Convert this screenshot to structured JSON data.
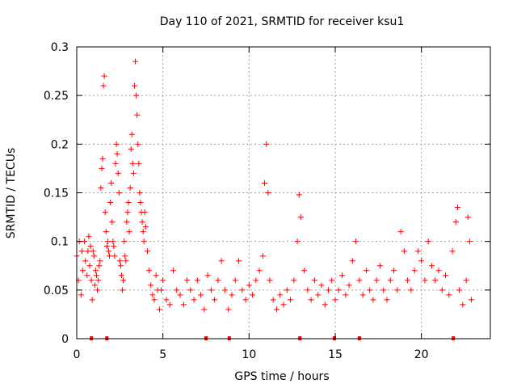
{
  "chart_data": {
    "type": "scatter",
    "title": "Day 110 of 2021, SRMTID for receiver ksu1",
    "xlabel": "GPS time / hours",
    "ylabel": "SRMTID / TECUs",
    "xlim": [
      0,
      24
    ],
    "ylim": [
      0,
      0.3
    ],
    "xticks": [
      0,
      5,
      10,
      15,
      20
    ],
    "xtick_labels": [
      "0",
      "5",
      "10",
      "15",
      "20"
    ],
    "yticks": [
      0,
      0.05,
      0.1,
      0.15,
      0.2,
      0.25,
      0.3
    ],
    "ytick_labels": [
      "0",
      "0.05",
      "0.1",
      "0.15",
      "0.2",
      "0.25",
      "0.3"
    ],
    "grid": true,
    "marker": "+",
    "color": "#ff0000",
    "series": [
      {
        "name": "SRMTID",
        "points": [
          [
            0.0,
            0.085
          ],
          [
            0.1,
            0.06
          ],
          [
            0.15,
            0.1
          ],
          [
            0.25,
            0.045
          ],
          [
            0.3,
            0.09
          ],
          [
            0.35,
            0.07
          ],
          [
            0.45,
            0.1
          ],
          [
            0.5,
            0.08
          ],
          [
            0.6,
            0.065
          ],
          [
            0.65,
            0.09
          ],
          [
            0.7,
            0.105
          ],
          [
            0.75,
            0.075
          ],
          [
            0.8,
            0.095
          ],
          [
            0.85,
            0.06
          ],
          [
            0.9,
            0.04
          ],
          [
            0.95,
            0.09
          ],
          [
            1.0,
            0.085
          ],
          [
            1.05,
            0.055
          ],
          [
            1.1,
            0.07
          ],
          [
            1.15,
            0.065
          ],
          [
            1.2,
            0.05
          ],
          [
            1.25,
            0.06
          ],
          [
            1.3,
            0.075
          ],
          [
            1.35,
            0.08
          ],
          [
            1.4,
            0.155
          ],
          [
            1.45,
            0.175
          ],
          [
            1.5,
            0.185
          ],
          [
            1.55,
            0.26
          ],
          [
            1.6,
            0.27
          ],
          [
            1.65,
            0.13
          ],
          [
            1.7,
            0.11
          ],
          [
            1.75,
            0.095
          ],
          [
            1.8,
            0.1
          ],
          [
            1.85,
            0.09
          ],
          [
            1.9,
            0.085
          ],
          [
            1.95,
            0.14
          ],
          [
            2.0,
            0.16
          ],
          [
            2.05,
            0.12
          ],
          [
            2.1,
            0.1
          ],
          [
            2.15,
            0.095
          ],
          [
            2.2,
            0.085
          ],
          [
            2.25,
            0.18
          ],
          [
            2.3,
            0.2
          ],
          [
            2.35,
            0.19
          ],
          [
            2.4,
            0.17
          ],
          [
            2.45,
            0.15
          ],
          [
            2.5,
            0.08
          ],
          [
            2.55,
            0.075
          ],
          [
            2.6,
            0.065
          ],
          [
            2.65,
            0.05
          ],
          [
            2.7,
            0.06
          ],
          [
            2.75,
            0.1
          ],
          [
            2.8,
            0.085
          ],
          [
            2.85,
            0.08
          ],
          [
            2.9,
            0.12
          ],
          [
            2.95,
            0.13
          ],
          [
            3.0,
            0.14
          ],
          [
            3.05,
            0.11
          ],
          [
            3.1,
            0.155
          ],
          [
            3.15,
            0.195
          ],
          [
            3.2,
            0.21
          ],
          [
            3.25,
            0.18
          ],
          [
            3.3,
            0.17
          ],
          [
            3.35,
            0.26
          ],
          [
            3.4,
            0.285
          ],
          [
            3.45,
            0.25
          ],
          [
            3.5,
            0.23
          ],
          [
            3.55,
            0.2
          ],
          [
            3.6,
            0.18
          ],
          [
            3.65,
            0.15
          ],
          [
            3.7,
            0.14
          ],
          [
            3.75,
            0.13
          ],
          [
            3.8,
            0.12
          ],
          [
            3.85,
            0.11
          ],
          [
            3.9,
            0.1
          ],
          [
            3.95,
            0.13
          ],
          [
            4.0,
            0.115
          ],
          [
            4.1,
            0.09
          ],
          [
            4.2,
            0.07
          ],
          [
            4.3,
            0.055
          ],
          [
            4.4,
            0.045
          ],
          [
            4.5,
            0.04
          ],
          [
            4.6,
            0.065
          ],
          [
            4.7,
            0.05
          ],
          [
            4.8,
            0.03
          ],
          [
            4.9,
            0.05
          ],
          [
            5.0,
            0.06
          ],
          [
            5.2,
            0.04
          ],
          [
            5.4,
            0.035
          ],
          [
            5.6,
            0.07
          ],
          [
            5.8,
            0.05
          ],
          [
            6.0,
            0.045
          ],
          [
            6.2,
            0.035
          ],
          [
            6.4,
            0.06
          ],
          [
            6.6,
            0.05
          ],
          [
            6.8,
            0.04
          ],
          [
            7.0,
            0.06
          ],
          [
            7.2,
            0.045
          ],
          [
            7.4,
            0.03
          ],
          [
            7.6,
            0.065
          ],
          [
            7.8,
            0.05
          ],
          [
            8.0,
            0.04
          ],
          [
            8.2,
            0.06
          ],
          [
            8.4,
            0.08
          ],
          [
            8.6,
            0.05
          ],
          [
            8.8,
            0.03
          ],
          [
            9.0,
            0.045
          ],
          [
            9.2,
            0.06
          ],
          [
            9.4,
            0.08
          ],
          [
            9.6,
            0.05
          ],
          [
            9.8,
            0.04
          ],
          [
            10.0,
            0.055
          ],
          [
            10.2,
            0.045
          ],
          [
            10.4,
            0.06
          ],
          [
            10.6,
            0.07
          ],
          [
            10.8,
            0.085
          ],
          [
            10.9,
            0.16
          ],
          [
            11.0,
            0.2
          ],
          [
            11.1,
            0.15
          ],
          [
            11.2,
            0.06
          ],
          [
            11.4,
            0.04
          ],
          [
            11.6,
            0.03
          ],
          [
            11.8,
            0.045
          ],
          [
            12.0,
            0.035
          ],
          [
            12.2,
            0.05
          ],
          [
            12.4,
            0.04
          ],
          [
            12.6,
            0.06
          ],
          [
            12.8,
            0.1
          ],
          [
            12.9,
            0.148
          ],
          [
            13.0,
            0.125
          ],
          [
            13.2,
            0.07
          ],
          [
            13.4,
            0.05
          ],
          [
            13.6,
            0.04
          ],
          [
            13.8,
            0.06
          ],
          [
            14.0,
            0.045
          ],
          [
            14.2,
            0.055
          ],
          [
            14.4,
            0.035
          ],
          [
            14.6,
            0.05
          ],
          [
            14.8,
            0.06
          ],
          [
            15.0,
            0.04
          ],
          [
            15.2,
            0.05
          ],
          [
            15.4,
            0.065
          ],
          [
            15.6,
            0.045
          ],
          [
            15.8,
            0.055
          ],
          [
            16.0,
            0.08
          ],
          [
            16.2,
            0.1
          ],
          [
            16.4,
            0.06
          ],
          [
            16.6,
            0.045
          ],
          [
            16.8,
            0.07
          ],
          [
            17.0,
            0.05
          ],
          [
            17.2,
            0.04
          ],
          [
            17.4,
            0.06
          ],
          [
            17.6,
            0.075
          ],
          [
            17.8,
            0.05
          ],
          [
            18.0,
            0.04
          ],
          [
            18.2,
            0.06
          ],
          [
            18.4,
            0.07
          ],
          [
            18.6,
            0.05
          ],
          [
            18.8,
            0.11
          ],
          [
            19.0,
            0.09
          ],
          [
            19.2,
            0.06
          ],
          [
            19.4,
            0.05
          ],
          [
            19.6,
            0.07
          ],
          [
            19.8,
            0.09
          ],
          [
            20.0,
            0.08
          ],
          [
            20.2,
            0.06
          ],
          [
            20.4,
            0.1
          ],
          [
            20.6,
            0.075
          ],
          [
            20.8,
            0.06
          ],
          [
            21.0,
            0.07
          ],
          [
            21.2,
            0.05
          ],
          [
            21.4,
            0.065
          ],
          [
            21.6,
            0.045
          ],
          [
            21.8,
            0.09
          ],
          [
            22.0,
            0.12
          ],
          [
            22.1,
            0.135
          ],
          [
            22.2,
            0.05
          ],
          [
            22.4,
            0.035
          ],
          [
            22.6,
            0.06
          ],
          [
            22.7,
            0.125
          ],
          [
            22.8,
            0.1
          ],
          [
            22.9,
            0.04
          ]
        ]
      },
      {
        "name": "baseline markers",
        "points": [
          [
            0.85,
            0
          ],
          [
            1.75,
            0
          ],
          [
            7.5,
            0
          ],
          [
            8.85,
            0
          ],
          [
            12.95,
            0
          ],
          [
            14.95,
            0
          ],
          [
            16.4,
            0
          ],
          [
            21.85,
            0
          ]
        ]
      }
    ]
  }
}
